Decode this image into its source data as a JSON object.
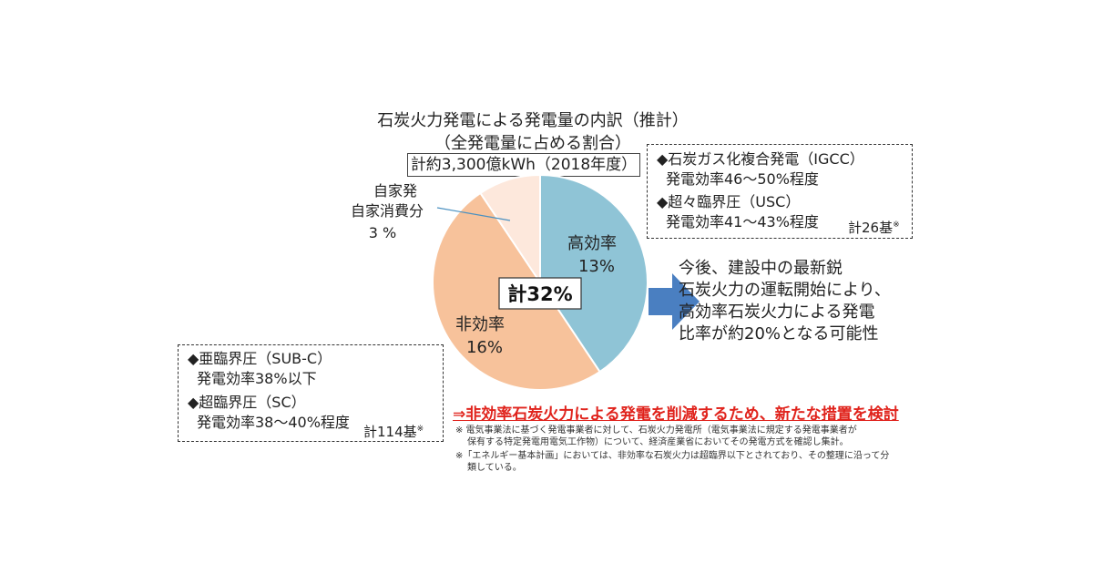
{
  "chart_data": {
    "type": "pie",
    "title": "石炭火力発電による発電量の内訳（推計）",
    "subtitle": "（全発電量に占める割合）",
    "total_label": "計約3,300億kWh（2018年度）",
    "center_label": "計32%",
    "slices": [
      {
        "name": "高効率",
        "value": 13,
        "label": "13%",
        "color": "#8fc4d6"
      },
      {
        "name": "非効率",
        "value": 16,
        "label": "16%",
        "color": "#f7c29b"
      },
      {
        "name": "自家発 自家消費分",
        "value": 3,
        "label": "3 %",
        "color": "#fde8dc"
      }
    ],
    "outside_label_lines": [
      "自家発",
      "自家消費分",
      "3 %"
    ]
  },
  "high_eff_box": {
    "line1": "◆石炭ガス化複合発電（IGCC）",
    "line2": "発電効率46～50%程度",
    "line3": "◆超々臨界圧（USC）",
    "line4": "発電効率41～43%程度",
    "count": "計26基",
    "mark": "※"
  },
  "low_eff_box": {
    "line1": "◆亜臨界圧（SUB-C）",
    "line2": "発電効率38%以下",
    "line3": "◆超臨界圧（SC）",
    "line4": "発電効率38～40%程度",
    "count": "計114基",
    "mark": "※"
  },
  "callout": {
    "line1": "今後、建設中の最新鋭",
    "line2": "石炭火力の運転開始により、",
    "line3": "高効率石炭火力による発電",
    "line4": "比率が約20%となる可能性",
    "arrow_color": "#4a7fc1"
  },
  "conclusion": "⇒非効率石炭火力による発電を削減するため、新たな措置を検討",
  "notes": [
    "※ 電気事業法に基づく発電事業者に対して、石炭火力発電所（電気事業法に規定する発電事業者が",
    "保有する特定発電用電気工作物）について、経済産業省においてその発電方式を確認し集計。",
    "※「エネルギー基本計画」においては、非効率な石炭火力は超臨界以下とされており、その整理に沿って分",
    "類している。"
  ]
}
